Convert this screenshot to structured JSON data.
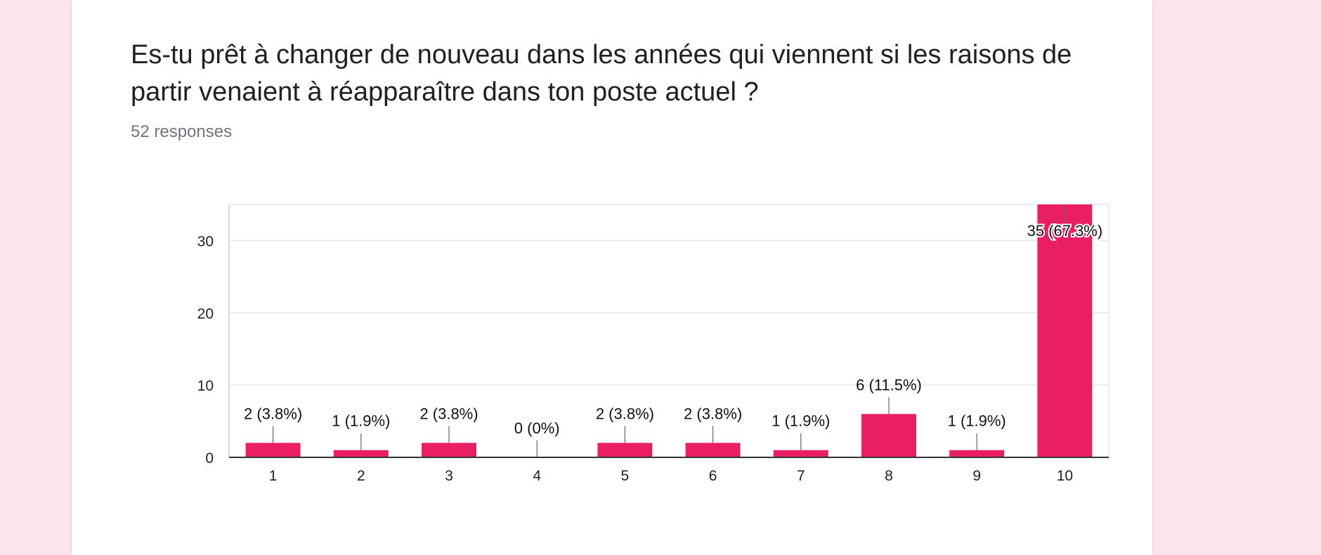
{
  "question": {
    "title": "Es-tu prêt à changer de nouveau dans les années qui viennent si les raisons de partir venaient à réapparaître dans ton poste actuel ?",
    "responses": "52 responses"
  },
  "colors": {
    "background": "#fbe4ec",
    "card": "#ffffff",
    "bar": "#e91e63"
  },
  "chart_data": {
    "type": "bar",
    "categories": [
      "1",
      "2",
      "3",
      "4",
      "5",
      "6",
      "7",
      "8",
      "9",
      "10"
    ],
    "values": [
      2,
      1,
      2,
      0,
      2,
      2,
      1,
      6,
      1,
      35
    ],
    "data_labels": [
      "2 (3.8%)",
      "1 (1.9%)",
      "2 (3.8%)",
      "0 (0%)",
      "2 (3.8%)",
      "2 (3.8%)",
      "1 (1.9%)",
      "6 (11.5%)",
      "1 (1.9%)",
      "35 (67.3%)"
    ],
    "yticks": [
      0,
      10,
      20,
      30
    ],
    "ylim": [
      0,
      35
    ],
    "grid": true,
    "legend": "none"
  }
}
